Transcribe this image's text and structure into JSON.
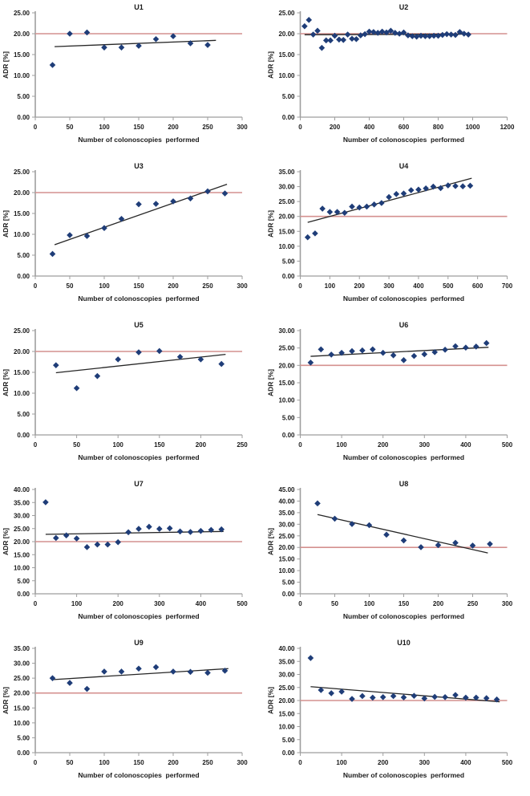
{
  "figure": {
    "xlabel": "Number of colonoscopies  performed",
    "ylabel": "ADR [%]",
    "colors": {
      "marker": "#1f3d78",
      "trend_line": "#262626",
      "reference_line": "#d4918f",
      "axis": "#9e9e9e",
      "text": "#1a1a1a",
      "background": "#ffffff"
    }
  },
  "chart_data": [
    {
      "type": "scatter",
      "title": "U1",
      "xlabel": "Number of colonoscopies  performed",
      "ylabel": "ADR [%]",
      "xlim": [
        0,
        300
      ],
      "xstep": 50,
      "ylim": [
        0,
        25
      ],
      "ystep": 5,
      "reference_line_y": 20,
      "trendline": {
        "x1": 28,
        "y1": 16.9,
        "x2": 262,
        "y2": 18.4
      },
      "points": [
        [
          25,
          12.5
        ],
        [
          50,
          20.0
        ],
        [
          75,
          20.3
        ],
        [
          100,
          16.7
        ],
        [
          125,
          16.7
        ],
        [
          150,
          17.1
        ],
        [
          175,
          18.7
        ],
        [
          200,
          19.4
        ],
        [
          225,
          17.7
        ],
        [
          250,
          17.3
        ]
      ]
    },
    {
      "type": "scatter",
      "title": "U2",
      "xlabel": "Number of colonoscopies  performed",
      "ylabel": "ADR [%]",
      "xlim": [
        0,
        1200
      ],
      "xstep": 200,
      "ylim": [
        0,
        25
      ],
      "ystep": 5,
      "reference_line_y": 20,
      "trendline": {
        "x1": 25,
        "y1": 19.75,
        "x2": 988,
        "y2": 19.9
      },
      "points": [
        [
          25,
          21.8
        ],
        [
          50,
          23.3
        ],
        [
          75,
          19.8
        ],
        [
          100,
          20.7
        ],
        [
          125,
          16.6
        ],
        [
          150,
          18.4
        ],
        [
          175,
          18.4
        ],
        [
          200,
          19.5
        ],
        [
          225,
          18.6
        ],
        [
          250,
          18.5
        ],
        [
          275,
          19.8
        ],
        [
          300,
          18.8
        ],
        [
          325,
          18.7
        ],
        [
          350,
          19.6
        ],
        [
          375,
          19.9
        ],
        [
          400,
          20.5
        ],
        [
          425,
          20.4
        ],
        [
          450,
          20.2
        ],
        [
          475,
          20.5
        ],
        [
          500,
          20.3
        ],
        [
          525,
          20.7
        ],
        [
          550,
          20.2
        ],
        [
          575,
          20.0
        ],
        [
          600,
          20.3
        ],
        [
          625,
          19.6
        ],
        [
          650,
          19.4
        ],
        [
          675,
          19.3
        ],
        [
          700,
          19.5
        ],
        [
          725,
          19.4
        ],
        [
          750,
          19.4
        ],
        [
          775,
          19.5
        ],
        [
          800,
          19.5
        ],
        [
          825,
          19.7
        ],
        [
          850,
          19.9
        ],
        [
          875,
          19.8
        ],
        [
          900,
          19.7
        ],
        [
          925,
          20.4
        ],
        [
          950,
          20.0
        ],
        [
          975,
          19.8
        ]
      ]
    },
    {
      "type": "scatter",
      "title": "U3",
      "xlabel": "Number of colonoscopies  performed",
      "ylabel": "ADR [%]",
      "xlim": [
        0,
        300
      ],
      "xstep": 50,
      "ylim": [
        0,
        25
      ],
      "ystep": 5,
      "reference_line_y": 20,
      "trendline": {
        "x1": 28,
        "y1": 7.5,
        "x2": 278,
        "y2": 22.0
      },
      "points": [
        [
          25,
          5.3
        ],
        [
          50,
          9.8
        ],
        [
          75,
          9.6
        ],
        [
          100,
          11.5
        ],
        [
          125,
          13.7
        ],
        [
          150,
          17.2
        ],
        [
          175,
          17.3
        ],
        [
          200,
          17.9
        ],
        [
          225,
          18.6
        ],
        [
          250,
          20.3
        ],
        [
          275,
          19.8
        ]
      ]
    },
    {
      "type": "scatter",
      "title": "U4",
      "xlabel": "Number of colonoscopies  performed",
      "ylabel": "ADR [%]",
      "xlim": [
        0,
        700
      ],
      "xstep": 100,
      "ylim": [
        0,
        35
      ],
      "ystep": 5,
      "reference_line_y": 20,
      "trendline": {
        "x1": 25,
        "y1": 18.0,
        "x2": 580,
        "y2": 32.8
      },
      "points": [
        [
          25,
          13.0
        ],
        [
          50,
          14.3
        ],
        [
          75,
          22.6
        ],
        [
          100,
          21.5
        ],
        [
          125,
          21.5
        ],
        [
          150,
          21.2
        ],
        [
          175,
          23.3
        ],
        [
          200,
          23.0
        ],
        [
          225,
          23.3
        ],
        [
          250,
          24.0
        ],
        [
          275,
          24.5
        ],
        [
          300,
          26.5
        ],
        [
          325,
          27.5
        ],
        [
          350,
          27.7
        ],
        [
          375,
          28.8
        ],
        [
          400,
          29.0
        ],
        [
          425,
          29.4
        ],
        [
          450,
          30.0
        ],
        [
          475,
          29.5
        ],
        [
          500,
          30.4
        ],
        [
          525,
          30.2
        ],
        [
          550,
          30.1
        ],
        [
          575,
          30.3
        ]
      ]
    },
    {
      "type": "scatter",
      "title": "U5",
      "xlabel": "Number of colonoscopies  performed",
      "ylabel": "ADR [%]",
      "xlim": [
        0,
        250
      ],
      "xstep": 50,
      "ylim": [
        0,
        25
      ],
      "ystep": 5,
      "reference_line_y": 20,
      "trendline": {
        "x1": 25,
        "y1": 14.9,
        "x2": 230,
        "y2": 19.3
      },
      "points": [
        [
          25,
          16.7
        ],
        [
          50,
          11.2
        ],
        [
          75,
          14.1
        ],
        [
          100,
          18.1
        ],
        [
          125,
          19.8
        ],
        [
          150,
          20.1
        ],
        [
          175,
          18.7
        ],
        [
          200,
          18.1
        ],
        [
          225,
          17.0
        ]
      ]
    },
    {
      "type": "scatter",
      "title": "U6",
      "xlabel": "Number of colonoscopies  performed",
      "ylabel": "ADR [%]",
      "xlim": [
        0,
        500
      ],
      "xstep": 100,
      "ylim": [
        0,
        30
      ],
      "ystep": 5,
      "reference_line_y": 20,
      "trendline": {
        "x1": 25,
        "y1": 22.6,
        "x2": 455,
        "y2": 25.2
      },
      "points": [
        [
          25,
          20.8
        ],
        [
          50,
          24.6
        ],
        [
          75,
          23.1
        ],
        [
          100,
          23.6
        ],
        [
          125,
          24.1
        ],
        [
          150,
          24.3
        ],
        [
          175,
          24.6
        ],
        [
          200,
          23.6
        ],
        [
          225,
          22.9
        ],
        [
          250,
          21.5
        ],
        [
          275,
          22.7
        ],
        [
          300,
          23.2
        ],
        [
          325,
          23.8
        ],
        [
          350,
          24.5
        ],
        [
          375,
          25.5
        ],
        [
          400,
          25.1
        ],
        [
          425,
          25.4
        ],
        [
          450,
          26.4
        ]
      ]
    },
    {
      "type": "scatter",
      "title": "U7",
      "xlabel": "Number of colonoscopies  performed",
      "ylabel": "ADR [%]",
      "xlim": [
        0,
        500
      ],
      "xstep": 100,
      "ylim": [
        0,
        40
      ],
      "ystep": 5,
      "reference_line_y": 20,
      "trendline": {
        "x1": 25,
        "y1": 22.8,
        "x2": 455,
        "y2": 23.9
      },
      "points": [
        [
          25,
          35.1
        ],
        [
          50,
          21.4
        ],
        [
          75,
          22.4
        ],
        [
          100,
          21.2
        ],
        [
          125,
          17.9
        ],
        [
          150,
          18.9
        ],
        [
          175,
          18.9
        ],
        [
          200,
          19.8
        ],
        [
          225,
          23.6
        ],
        [
          250,
          24.9
        ],
        [
          275,
          25.7
        ],
        [
          300,
          24.9
        ],
        [
          325,
          25.1
        ],
        [
          350,
          23.9
        ],
        [
          375,
          23.7
        ],
        [
          400,
          24.1
        ],
        [
          425,
          24.5
        ],
        [
          450,
          24.7
        ]
      ]
    },
    {
      "type": "scatter",
      "title": "U8",
      "xlabel": "Number of colonoscopies  performed",
      "ylabel": "ADR [%]",
      "xlim": [
        0,
        300
      ],
      "xstep": 50,
      "ylim": [
        0,
        45
      ],
      "ystep": 5,
      "reference_line_y": 20,
      "trendline": {
        "x1": 25,
        "y1": 34.2,
        "x2": 272,
        "y2": 17.6
      },
      "points": [
        [
          25,
          39.0
        ],
        [
          50,
          32.4
        ],
        [
          75,
          30.1
        ],
        [
          100,
          29.6
        ],
        [
          125,
          25.5
        ],
        [
          150,
          23.0
        ],
        [
          175,
          20.1
        ],
        [
          200,
          21.0
        ],
        [
          225,
          22.0
        ],
        [
          250,
          20.8
        ],
        [
          275,
          21.5
        ]
      ]
    },
    {
      "type": "scatter",
      "title": "U9",
      "xlabel": "Number of colonoscopies  performed",
      "ylabel": "ADR [%]",
      "xlim": [
        0,
        300
      ],
      "xstep": 50,
      "ylim": [
        0,
        35
      ],
      "ystep": 5,
      "reference_line_y": 20,
      "trendline": {
        "x1": 25,
        "y1": 24.5,
        "x2": 280,
        "y2": 28.2
      },
      "points": [
        [
          25,
          25.0
        ],
        [
          50,
          23.4
        ],
        [
          75,
          21.4
        ],
        [
          100,
          27.2
        ],
        [
          125,
          27.2
        ],
        [
          150,
          28.2
        ],
        [
          175,
          28.7
        ],
        [
          200,
          27.2
        ],
        [
          225,
          27.1
        ],
        [
          250,
          26.8
        ],
        [
          275,
          27.5
        ]
      ]
    },
    {
      "type": "scatter",
      "title": "U10",
      "xlabel": "Number of colonoscopies  performed",
      "ylabel": "ADR [%]",
      "xlim": [
        0,
        500
      ],
      "xstep": 100,
      "ylim": [
        0,
        40
      ],
      "ystep": 5,
      "reference_line_y": 20,
      "trendline": {
        "x1": 25,
        "y1": 25.3,
        "x2": 482,
        "y2": 19.5
      },
      "points": [
        [
          25,
          36.3
        ],
        [
          50,
          24.0
        ],
        [
          75,
          22.8
        ],
        [
          100,
          23.4
        ],
        [
          125,
          20.6
        ],
        [
          150,
          21.7
        ],
        [
          175,
          21.1
        ],
        [
          200,
          21.3
        ],
        [
          225,
          21.7
        ],
        [
          250,
          21.2
        ],
        [
          275,
          21.8
        ],
        [
          300,
          20.8
        ],
        [
          325,
          21.4
        ],
        [
          350,
          21.3
        ],
        [
          375,
          22.1
        ],
        [
          400,
          21.1
        ],
        [
          425,
          21.1
        ],
        [
          450,
          20.9
        ],
        [
          475,
          20.4
        ]
      ]
    }
  ]
}
